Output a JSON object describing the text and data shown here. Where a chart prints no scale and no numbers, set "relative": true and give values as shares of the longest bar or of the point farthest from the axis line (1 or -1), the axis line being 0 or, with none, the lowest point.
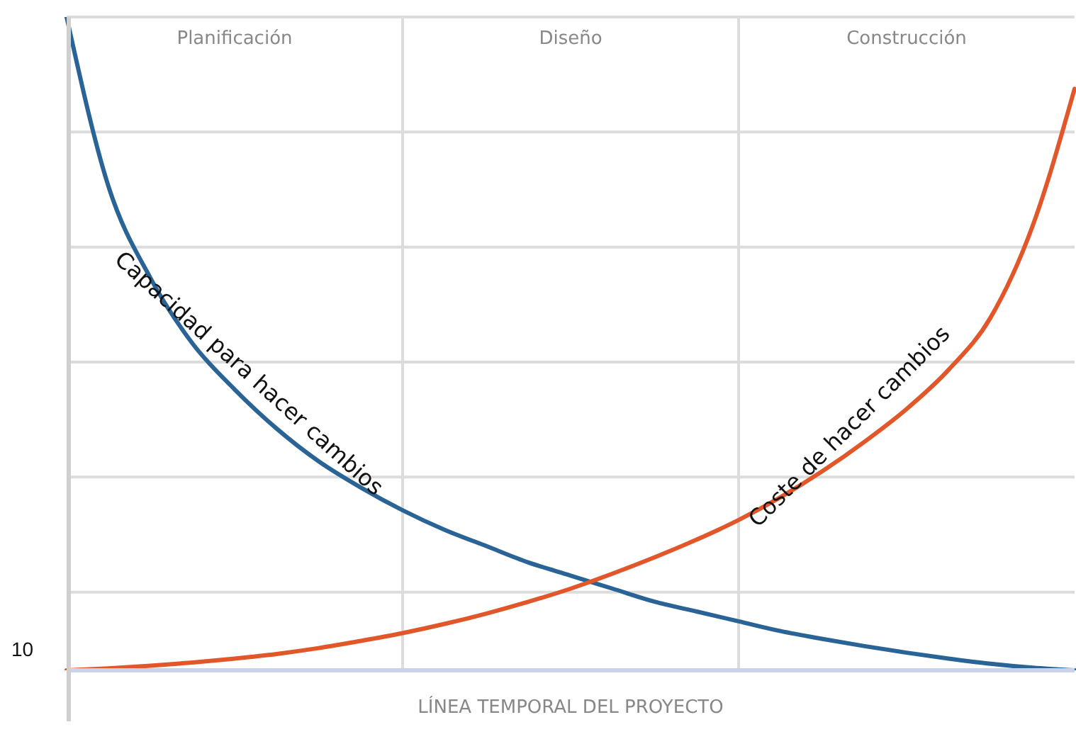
{
  "chart_data": {
    "type": "line",
    "relative": true,
    "xlabel": "LÍNEA TEMPORAL DEL PROYECTO",
    "annotations": [
      "Planificación",
      "Diseño",
      "Construcción",
      "10"
    ],
    "grid": true,
    "legend": false,
    "categories": [
      null,
      null,
      null,
      null,
      null,
      null,
      null,
      null,
      null,
      null,
      null,
      null,
      null,
      null,
      null,
      null,
      null,
      null,
      null,
      null,
      null,
      null,
      null,
      null,
      null
    ],
    "series": [
      {
        "name": "Capacidad para hacer cambios",
        "color": "#2a6496",
        "values": [
          1.0,
          0.74,
          0.6,
          0.5,
          0.43,
          0.37,
          0.32,
          0.28,
          0.245,
          0.215,
          0.19,
          0.165,
          0.145,
          0.125,
          0.105,
          0.09,
          0.075,
          0.06,
          0.048,
          0.037,
          0.027,
          0.018,
          0.01,
          0.004,
          0.0
        ]
      },
      {
        "name": "Coste de hacer cambios",
        "color": "#e2572a",
        "values": [
          0.0,
          0.003,
          0.007,
          0.012,
          0.018,
          0.025,
          0.034,
          0.045,
          0.057,
          0.071,
          0.087,
          0.105,
          0.125,
          0.148,
          0.173,
          0.2,
          0.23,
          0.265,
          0.305,
          0.35,
          0.4,
          0.46,
          0.54,
          0.68,
          0.89
        ]
      }
    ]
  }
}
